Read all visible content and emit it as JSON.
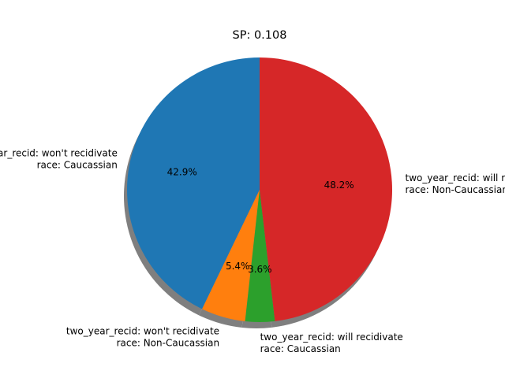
{
  "chart_data": {
    "type": "pie",
    "title": "SP: 0.108",
    "start_angle_deg": 90,
    "direction": "counterclockwise",
    "shadow": true,
    "slices": [
      {
        "label_line1": "two_year_recid: won't recidivate",
        "label_line2": "race: Caucassian",
        "value": 42.9,
        "pct_label": "42.9%",
        "color": "#1f77b4"
      },
      {
        "label_line1": "two_year_recid: won't recidivate",
        "label_line2": "race: Non-Caucassian",
        "value": 5.4,
        "pct_label": "5.4%",
        "color": "#ff7f0e"
      },
      {
        "label_line1": "two_year_recid: will recidivate",
        "label_line2": "race: Caucassian",
        "value": 3.6,
        "pct_label": "3.6%",
        "color": "#2ca02c"
      },
      {
        "label_line1": "two_year_recid: will recidivate",
        "label_line2": "race: Non-Caucassian",
        "value": 48.2,
        "pct_label": "48.2%",
        "color": "#d62728"
      }
    ]
  }
}
